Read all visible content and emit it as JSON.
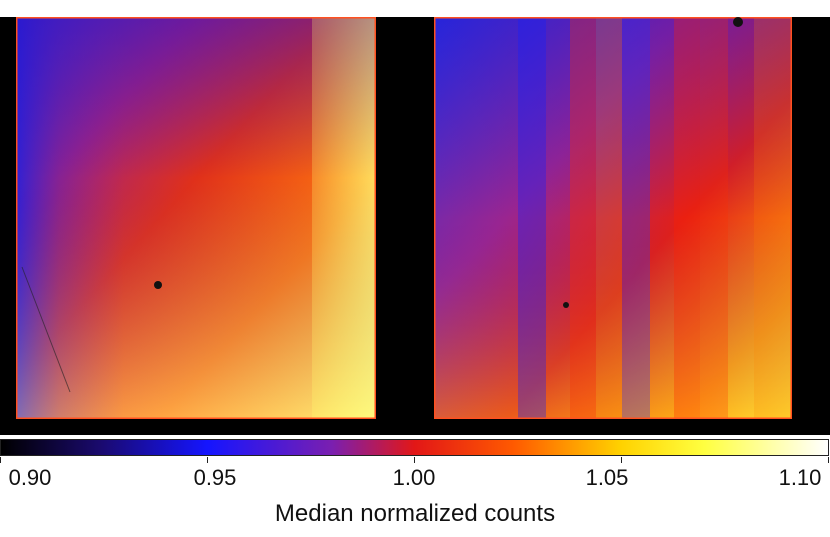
{
  "colorbar": {
    "label": "Median normalized counts",
    "ticks": [
      "0.90",
      "0.95",
      "1.00",
      "1.05",
      "1.10"
    ],
    "range": [
      0.9,
      1.1
    ],
    "stops": [
      {
        "v": 0.0,
        "color": "#000000"
      },
      {
        "v": 0.12,
        "color": "#1a0a6e"
      },
      {
        "v": 0.25,
        "color": "#1515ff"
      },
      {
        "v": 0.4,
        "color": "#7a1fb0"
      },
      {
        "v": 0.5,
        "color": "#e21717"
      },
      {
        "v": 0.62,
        "color": "#ff5a00"
      },
      {
        "v": 0.75,
        "color": "#ffd200"
      },
      {
        "v": 0.85,
        "color": "#ffff40"
      },
      {
        "v": 1.0,
        "color": "#ffffff"
      }
    ]
  },
  "image": {
    "background_color": "#000000",
    "detectors": [
      "left",
      "right"
    ]
  }
}
